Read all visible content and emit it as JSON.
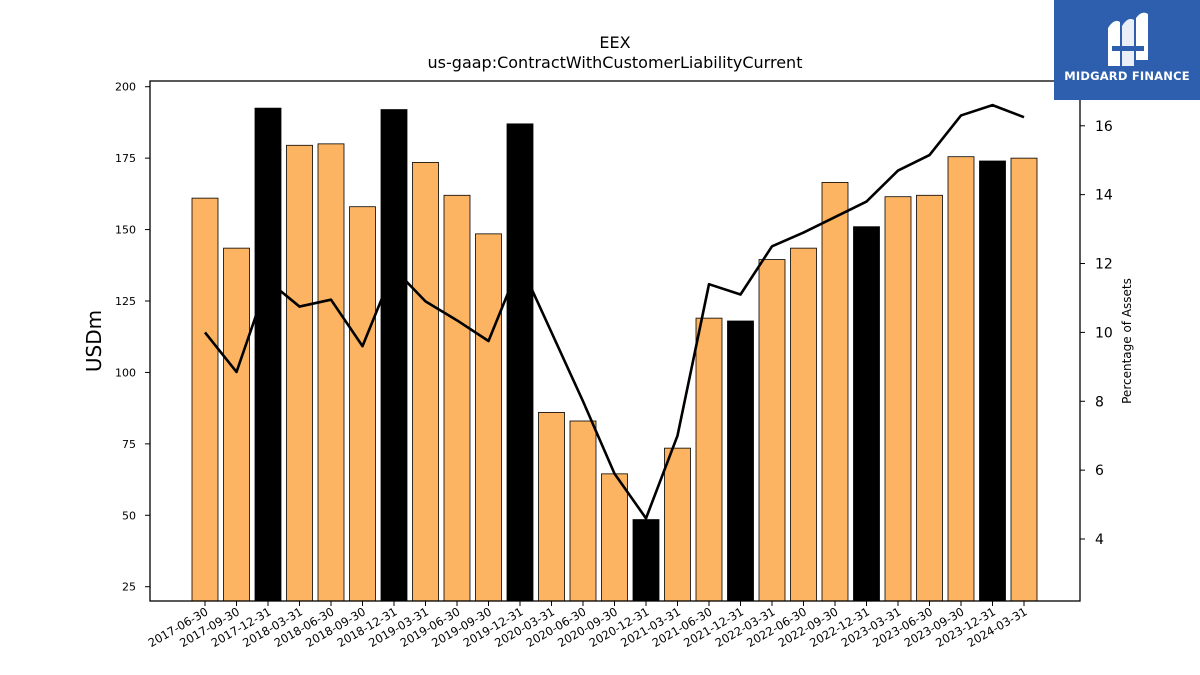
{
  "chart_data": {
    "type": "bar",
    "title": "EEX",
    "subtitle": "us-gaap:ContractWithCustomerLiabilityCurrent",
    "ylabel": "USDm",
    "y2label": "Percentage of Assets",
    "ylim": [
      20,
      202
    ],
    "y2lim": [
      2.2,
      17.3
    ],
    "yticks": [
      25,
      50,
      75,
      100,
      125,
      150,
      175,
      200
    ],
    "y2ticks": [
      4,
      6,
      8,
      10,
      12,
      14,
      16
    ],
    "grid": false,
    "categories": [
      "2017-06-30",
      "2017-09-30",
      "2017-12-31",
      "2018-03-31",
      "2018-06-30",
      "2018-09-30",
      "2018-12-31",
      "2019-03-31",
      "2019-06-30",
      "2019-09-30",
      "2019-12-31",
      "2020-03-31",
      "2020-06-30",
      "2020-09-30",
      "2020-12-31",
      "2021-03-31",
      "2021-06-30",
      "2021-12-31",
      "2022-03-31",
      "2022-06-30",
      "2022-09-30",
      "2022-12-31",
      "2023-03-31",
      "2023-06-30",
      "2023-09-30",
      "2023-12-31",
      "2024-03-31"
    ],
    "series": [
      {
        "type": "bar",
        "values": [
          161,
          143.5,
          192.5,
          179.5,
          180,
          158,
          192,
          173.5,
          162,
          148.5,
          187,
          86,
          83,
          64.5,
          48.5,
          73.5,
          119,
          118,
          139.5,
          143.5,
          166.5,
          151,
          161.5,
          162,
          175.5,
          174,
          175
        ],
        "colors": [
          "#fdb462",
          "#fdb462",
          "#000000",
          "#fdb462",
          "#fdb462",
          "#fdb462",
          "#000000",
          "#fdb462",
          "#fdb462",
          "#fdb462",
          "#000000",
          "#fdb462",
          "#fdb462",
          "#fdb462",
          "#000000",
          "#fdb462",
          "#fdb462",
          "#000000",
          "#fdb462",
          "#fdb462",
          "#fdb462",
          "#000000",
          "#fdb462",
          "#fdb462",
          "#fdb462",
          "#000000",
          "#fdb462"
        ]
      },
      {
        "type": "line",
        "axis": "right",
        "color": "#000000",
        "values": [
          10.0,
          8.85,
          11.5,
          10.75,
          10.95,
          9.6,
          11.85,
          10.9,
          10.35,
          9.75,
          12.0,
          10.0,
          8.0,
          5.9,
          4.6,
          7.0,
          11.4,
          11.1,
          12.5,
          12.9,
          13.35,
          13.8,
          14.7,
          15.15,
          16.3,
          16.6,
          16.25
        ]
      }
    ]
  },
  "logo": {
    "text": "MIDGARD FINANCE",
    "background": "#2d5fae"
  }
}
